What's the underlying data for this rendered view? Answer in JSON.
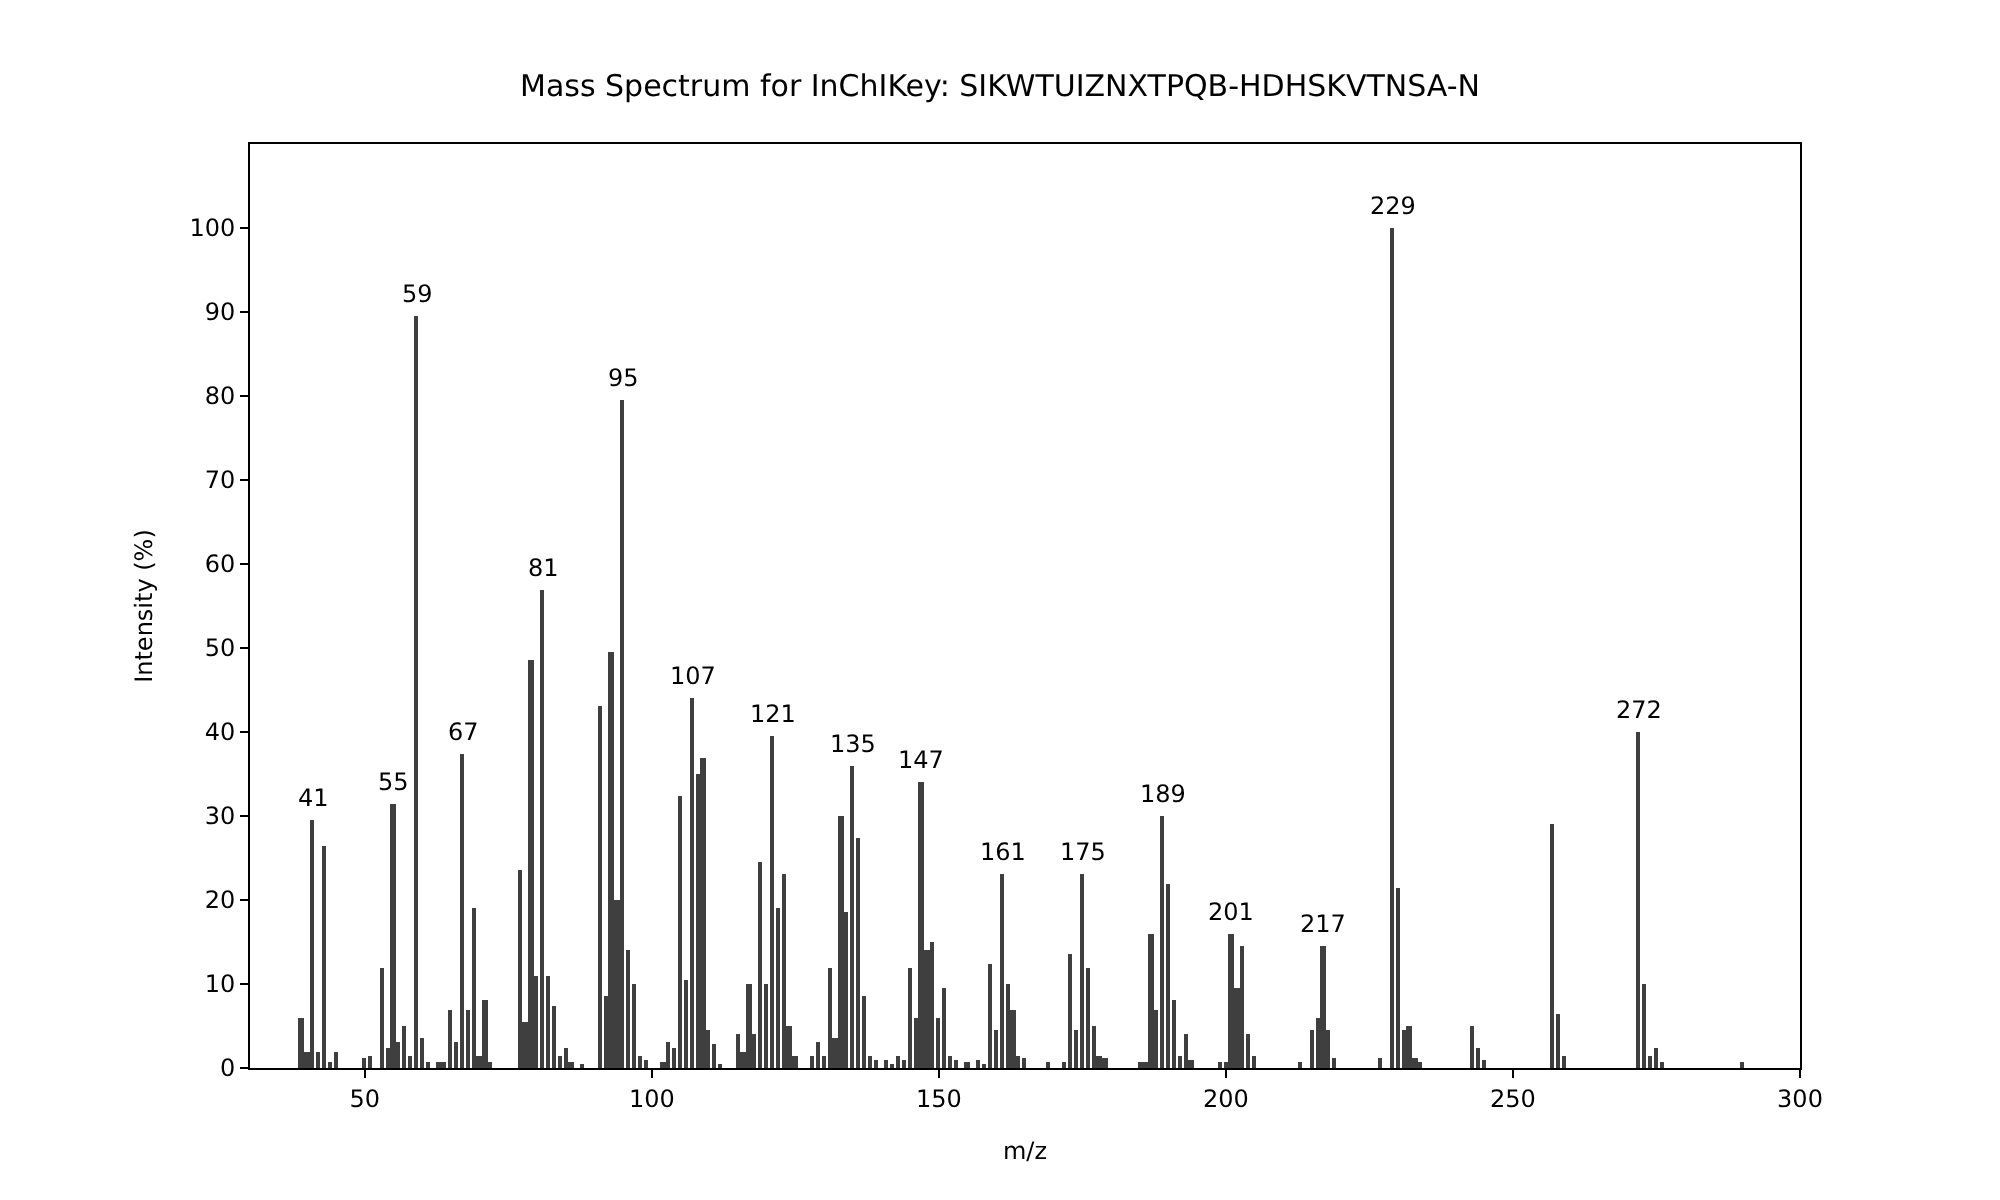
{
  "chart_data": {
    "type": "bar",
    "title": "Mass Spectrum for InChIKey: SIKWTUIZNXTPQB-HDHSKVTNSA-N",
    "xlabel": "m/z",
    "ylabel": "Intensity (%)",
    "x": [
      39,
      40,
      41,
      42,
      43,
      44,
      45,
      50,
      51,
      53,
      54,
      55,
      56,
      57,
      58,
      59,
      60,
      61,
      63,
      64,
      65,
      66,
      67,
      68,
      69,
      70,
      71,
      72,
      77,
      78,
      79,
      80,
      81,
      82,
      83,
      84,
      85,
      86,
      88,
      91,
      92,
      93,
      94,
      95,
      96,
      97,
      98,
      99,
      102,
      103,
      104,
      105,
      106,
      107,
      108,
      109,
      110,
      111,
      112,
      115,
      116,
      117,
      118,
      119,
      120,
      121,
      122,
      123,
      124,
      125,
      128,
      129,
      130,
      131,
      132,
      133,
      134,
      135,
      136,
      137,
      138,
      139,
      141,
      142,
      143,
      144,
      145,
      146,
      147,
      148,
      149,
      150,
      151,
      152,
      153,
      155,
      157,
      158,
      159,
      160,
      161,
      162,
      163,
      164,
      165,
      169,
      172,
      173,
      174,
      175,
      176,
      177,
      178,
      179,
      185,
      186,
      187,
      188,
      189,
      190,
      191,
      192,
      193,
      194,
      199,
      200,
      201,
      202,
      203,
      204,
      205,
      213,
      215,
      216,
      217,
      218,
      219,
      227,
      229,
      230,
      231,
      232,
      233,
      234,
      243,
      244,
      245,
      257,
      258,
      259,
      272,
      273,
      274,
      275,
      276,
      290
    ],
    "values": [
      6,
      2,
      29.5,
      2,
      26.5,
      0.7,
      2,
      1.3,
      1.5,
      12,
      2.5,
      31.5,
      3,
      5,
      1.5,
      89.5,
      3.5,
      0.8,
      0.6,
      0.8,
      7,
      3,
      37.5,
      7,
      19,
      1.5,
      8,
      0.7,
      23.5,
      5.5,
      48.5,
      11,
      57,
      11,
      7.5,
      1.5,
      2.5,
      0.7,
      0.5,
      43,
      8.5,
      49.5,
      20,
      79.5,
      14,
      10,
      1.5,
      1,
      0.8,
      3,
      2.5,
      32.5,
      10.5,
      44,
      35,
      37,
      4.5,
      2.8,
      0.5,
      4,
      2,
      10,
      4,
      24.5,
      10,
      39.5,
      19,
      23,
      5,
      1.5,
      1.5,
      3,
      1.5,
      12,
      3.5,
      30,
      18.5,
      36,
      27.5,
      8.5,
      1.5,
      1,
      1,
      0.5,
      1.5,
      1,
      12,
      6,
      34,
      14,
      15,
      6,
      9.5,
      1.5,
      1,
      0.8,
      1,
      0.5,
      12.5,
      4.5,
      23,
      10,
      7,
      1.5,
      1.2,
      0.8,
      0.8,
      13.5,
      4.5,
      23,
      12,
      5,
      1.5,
      1.2,
      0.8,
      0.8,
      16,
      7,
      30,
      22,
      8,
      1.5,
      4,
      1,
      0.8,
      0.8,
      16,
      9.5,
      14.5,
      4,
      1.5,
      0.7,
      4.5,
      6,
      14.5,
      4.5,
      1.2,
      1.2,
      100,
      21.5,
      4.5,
      5,
      1.2,
      0.7,
      5,
      2.5,
      1,
      29,
      6.5,
      1.5,
      40,
      10,
      1.5,
      2.5,
      0.8,
      0.8
    ],
    "color": "#3f3f3f",
    "xlim": [
      30,
      300
    ],
    "xticks": [
      50,
      100,
      150,
      200,
      250,
      300
    ],
    "ylim": [
      0,
      110
    ],
    "yticks": [
      0,
      10,
      20,
      30,
      40,
      50,
      60,
      70,
      80,
      90,
      100
    ],
    "annotations": [
      {
        "text": "41",
        "x": 41,
        "y": 29.5
      },
      {
        "text": "55",
        "x": 55,
        "y": 31.5
      },
      {
        "text": "59",
        "x": 59,
        "y": 89.5
      },
      {
        "text": "67",
        "x": 67,
        "y": 37.5
      },
      {
        "text": "81",
        "x": 81,
        "y": 57
      },
      {
        "text": "95",
        "x": 95,
        "y": 79.5
      },
      {
        "text": "107",
        "x": 107,
        "y": 44
      },
      {
        "text": "121",
        "x": 121,
        "y": 39.5
      },
      {
        "text": "135",
        "x": 135,
        "y": 36
      },
      {
        "text": "147",
        "x": 147,
        "y": 34
      },
      {
        "text": "161",
        "x": 161,
        "y": 23
      },
      {
        "text": "175",
        "x": 175,
        "y": 23
      },
      {
        "text": "189",
        "x": 189,
        "y": 30
      },
      {
        "text": "201",
        "x": 201,
        "y": 16
      },
      {
        "text": "217",
        "x": 217,
        "y": 14.5
      },
      {
        "text": "229",
        "x": 229,
        "y": 100
      },
      {
        "text": "272",
        "x": 272,
        "y": 40
      }
    ]
  }
}
